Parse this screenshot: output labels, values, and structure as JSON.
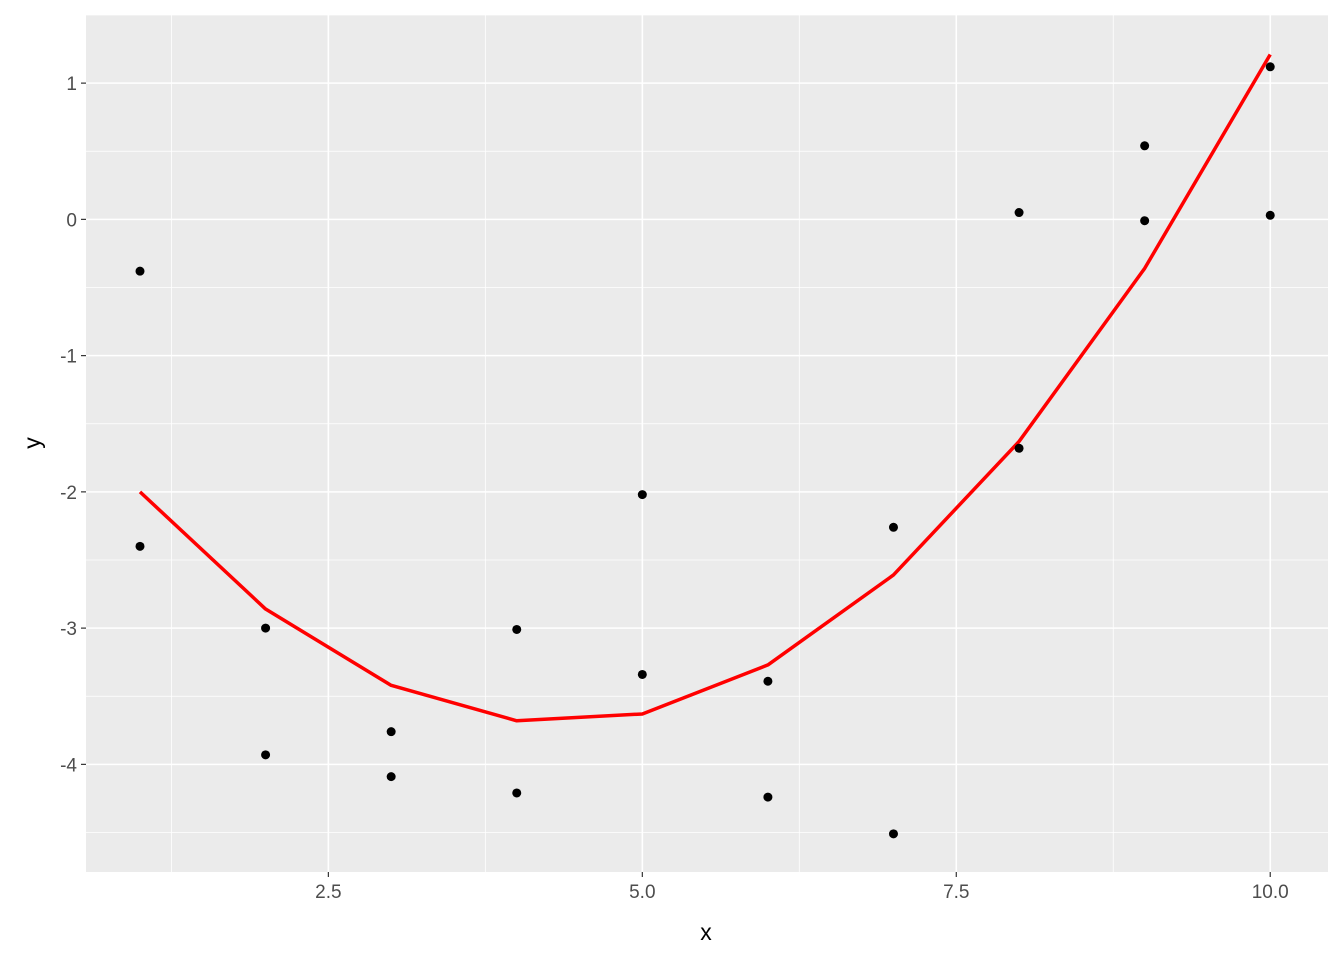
{
  "chart_data": {
    "type": "scatter",
    "xlabel": "x",
    "ylabel": "y",
    "xlim": [
      0.57,
      10.46
    ],
    "ylim": [
      -4.79,
      1.5
    ],
    "x_ticks": [
      2.5,
      5.0,
      7.5,
      10.0
    ],
    "x_tick_labels": [
      "2.5",
      "5.0",
      "7.5",
      "10.0"
    ],
    "y_ticks": [
      1,
      0,
      -1,
      -2,
      -3,
      -4
    ],
    "y_tick_labels": [
      "1",
      "0",
      "-1",
      "-2",
      "-3",
      "-4"
    ],
    "grid": true,
    "background": "#EBEBEB",
    "points": {
      "color": "#000000",
      "x": [
        1,
        1,
        2,
        2,
        3,
        3,
        4,
        4,
        5,
        5,
        6,
        6,
        7,
        7,
        8,
        8,
        9,
        9,
        10,
        10
      ],
      "y": [
        -0.38,
        -2.4,
        -3.0,
        -3.93,
        -3.76,
        -4.09,
        -3.01,
        -4.21,
        -2.02,
        -3.34,
        -3.39,
        -4.24,
        -2.26,
        -4.51,
        0.05,
        -1.68,
        0.54,
        -0.01,
        1.12,
        0.03
      ]
    },
    "line": {
      "type": "line",
      "color": "#FF0000",
      "x": [
        1,
        2,
        3,
        4,
        5,
        6,
        7,
        8,
        9,
        10
      ],
      "y": [
        -2.0,
        -2.86,
        -3.42,
        -3.68,
        -3.63,
        -3.27,
        -2.61,
        -1.63,
        -0.36,
        1.21
      ]
    }
  }
}
